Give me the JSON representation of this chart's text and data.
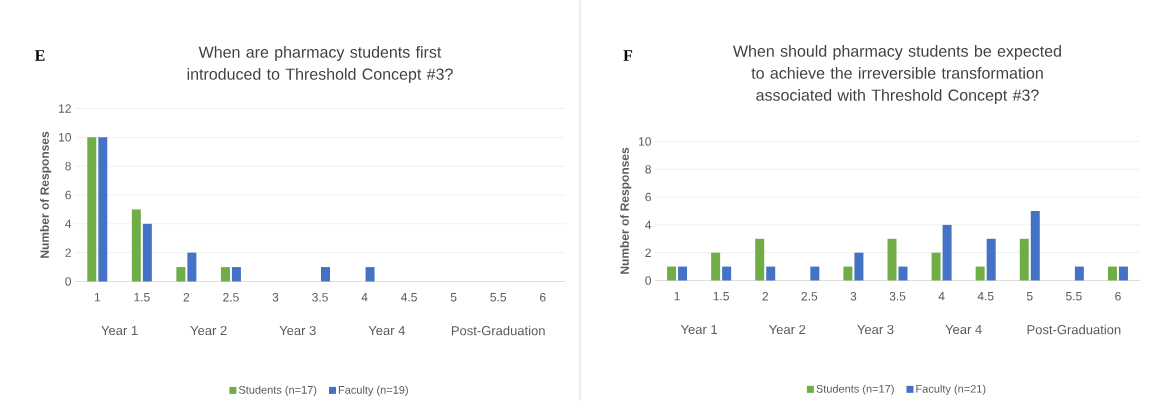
{
  "chart_data": [
    {
      "type": "bar",
      "title": "When are pharmacy students first introduced to Threshold Concept #3?",
      "ylabel": "Number of Responses",
      "categories": [
        "1",
        "1.5",
        "2",
        "2.5",
        "3",
        "3.5",
        "4",
        "4.5",
        "5",
        "5.5",
        "6"
      ],
      "series": [
        {
          "name": "Students (n=17)",
          "color": "#70ad47",
          "values": [
            10,
            5,
            1,
            1,
            0,
            0,
            0,
            0,
            0,
            0,
            0
          ]
        },
        {
          "name": "Faculty (n=19)",
          "color": "#4472c4",
          "values": [
            10,
            4,
            2,
            1,
            0,
            1,
            1,
            0,
            0,
            0,
            0
          ]
        }
      ],
      "ylim": [
        0,
        12
      ],
      "yticks": [
        0,
        2,
        4,
        6,
        8,
        10,
        12
      ],
      "grid": "y",
      "legend": "bottom",
      "annotations": [
        "E",
        "Year 1",
        "Year 2",
        "Year 3",
        "Year 4",
        "Post-Graduation"
      ]
    },
    {
      "type": "bar",
      "title": "When should pharmacy students be expected to achieve the irreversible transformation associated with Threshold Concept #3?",
      "ylabel": "Number of Responses",
      "categories": [
        "1",
        "1.5",
        "2",
        "2.5",
        "3",
        "3.5",
        "4",
        "4.5",
        "5",
        "5.5",
        "6"
      ],
      "series": [
        {
          "name": "Students (n=17)",
          "color": "#70ad47",
          "values": [
            1,
            2,
            3,
            0,
            1,
            3,
            2,
            1,
            3,
            0,
            1
          ]
        },
        {
          "name": "Faculty (n=21)",
          "color": "#4472c4",
          "values": [
            1,
            1,
            1,
            1,
            2,
            1,
            4,
            3,
            5,
            1,
            1
          ]
        }
      ],
      "ylim": [
        0,
        10
      ],
      "yticks": [
        0,
        2,
        4,
        6,
        8,
        10
      ],
      "grid": "y",
      "legend": "bottom",
      "annotations": [
        "F",
        "Year 1",
        "Year 2",
        "Year 3",
        "Year 4",
        "Post-Graduation"
      ]
    }
  ]
}
